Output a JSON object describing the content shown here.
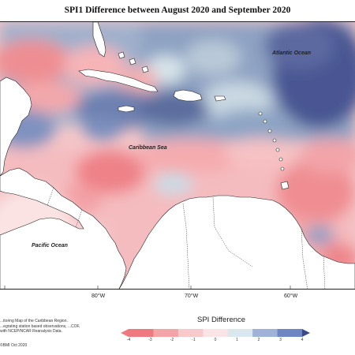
{
  "title": "SPI1 Difference between August 2020 and September 2020",
  "labels": {
    "atlantic": "Atlantic Ocean",
    "caribbean": "Caribbean Sea",
    "pacific": "Pacific Ocean"
  },
  "longitudes": [
    "80°W",
    "70°W",
    "60°W"
  ],
  "credit": {
    "text": "...itoring Map of the Caribbean Region. ...egrating station based observations, ...COF, with NCEP/NCAR Reanalysis Data.",
    "copyright": "©BMI Oct 2020"
  },
  "legend": {
    "title": "SPI Difference",
    "ticks": [
      "-4",
      "-3",
      "-2",
      "-1",
      "0",
      "1",
      "2",
      "3",
      "4"
    ],
    "colors": [
      "#ee7a80",
      "#f4a3a6",
      "#f8c9cb",
      "#fbe4e5",
      "#d9e8ee",
      "#9fb2d8",
      "#6f86c4",
      "#5f7c9a",
      "#3a4a86"
    ]
  }
}
